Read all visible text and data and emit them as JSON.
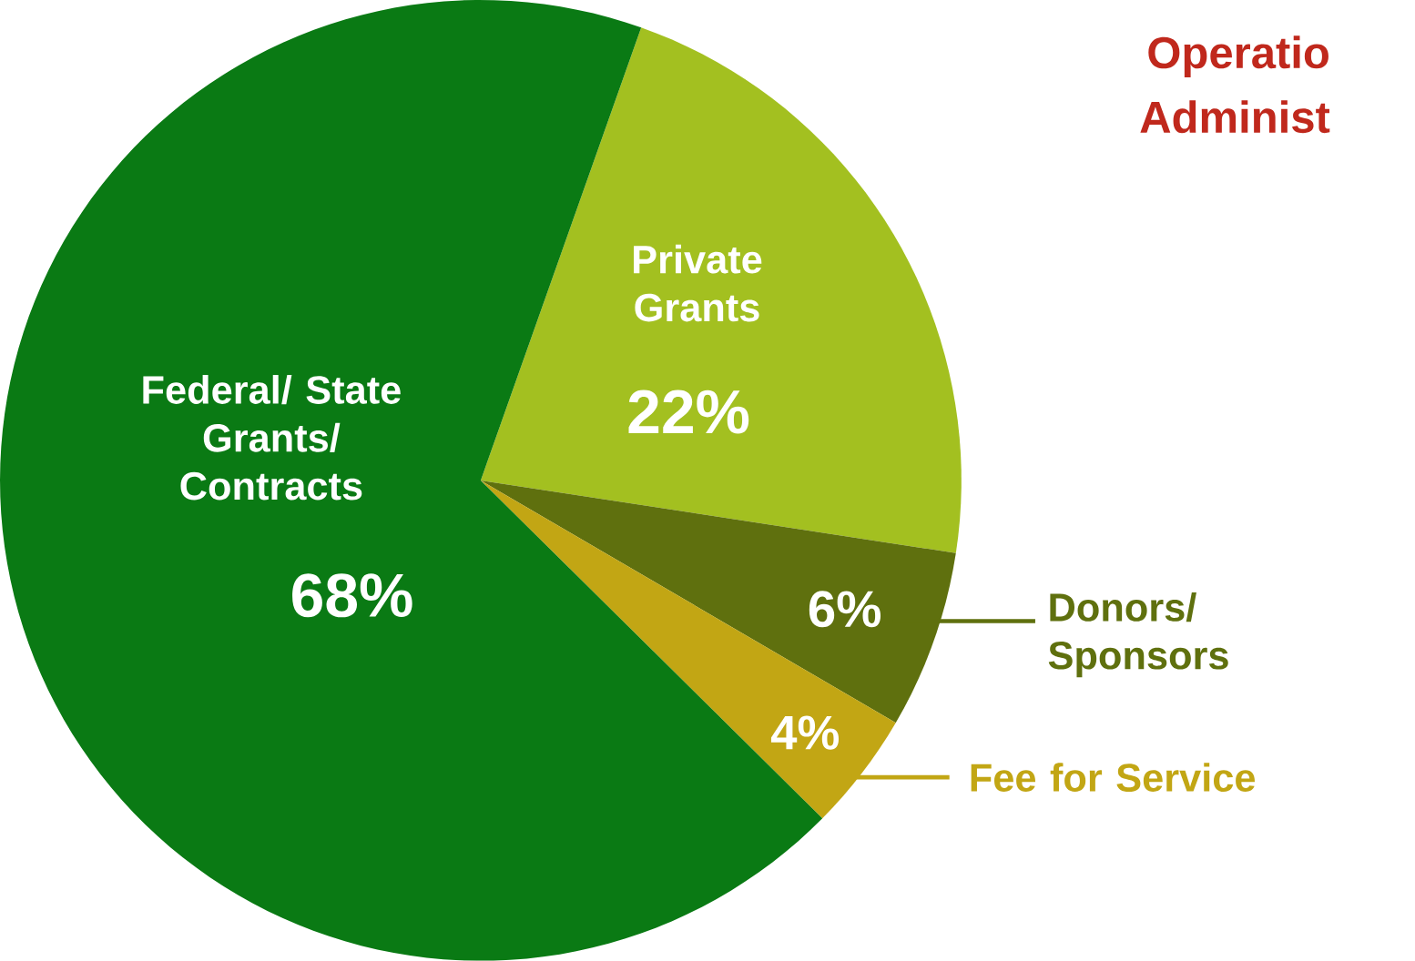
{
  "chart_data": {
    "type": "pie",
    "categories": [
      "Private Grants",
      "Donors/ Sponsors",
      "Fee for Service",
      "Federal/ State Grants/ Contracts"
    ],
    "values": [
      22,
      6,
      4,
      68
    ],
    "value_labels": [
      "22%",
      "6%",
      "4%",
      "68%"
    ],
    "colors": [
      "#a3c020",
      "#5f700e",
      "#c2a614",
      "#0a7a14"
    ],
    "annotations": [
      "Operatio",
      "Administ"
    ]
  }
}
